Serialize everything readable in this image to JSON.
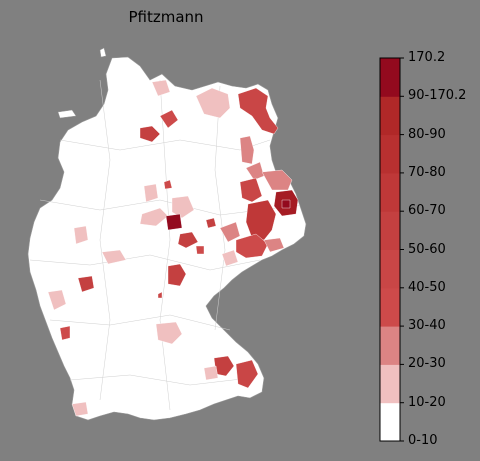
{
  "title": "Pfitzmann",
  "legend": {
    "bins": [
      {
        "label": "0-10",
        "color": "#ffffff"
      },
      {
        "label": "10-20",
        "color": "#f0c0c0"
      },
      {
        "label": "20-30",
        "color": "#dc8484"
      },
      {
        "label": "30-40",
        "color": "#cd4a4a"
      },
      {
        "label": "40-50",
        "color": "#c94646"
      },
      {
        "label": "50-60",
        "color": "#c44040"
      },
      {
        "label": "60-70",
        "color": "#bf3838"
      },
      {
        "label": "70-80",
        "color": "#b83030"
      },
      {
        "label": "80-90",
        "color": "#b02828"
      },
      {
        "label": "90-170.2",
        "color": "#a51c24"
      },
      {
        "label": "170.2",
        "color": "#930a1e"
      }
    ]
  },
  "colors": {
    "background": "#808080",
    "base": "#ffffff",
    "border": "#b0b0b0"
  }
}
